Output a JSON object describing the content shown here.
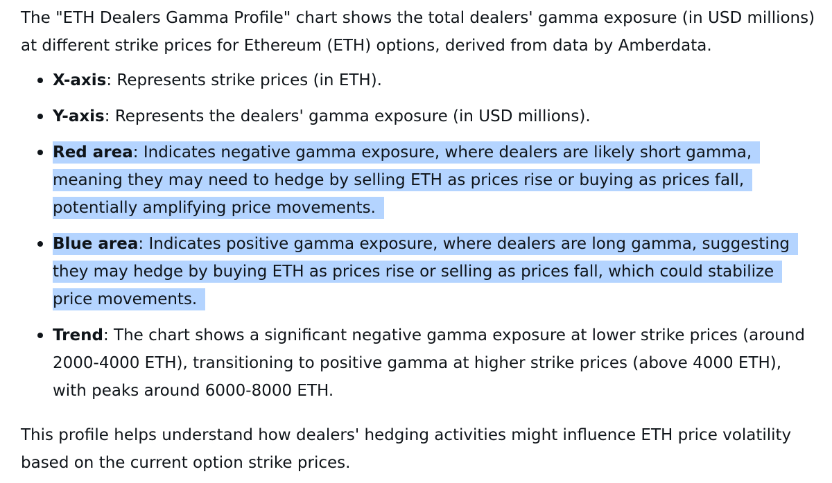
{
  "intro": "The \"ETH Dealers Gamma Profile\" chart shows the total dealers' gamma exposure (in USD millions) at different strike prices for Ethereum (ETH) options, derived from data by Amberdata.",
  "bullets": [
    {
      "term": "X-axis",
      "sep": ": ",
      "text": "Represents strike prices (in ETH).",
      "highlighted": false
    },
    {
      "term": "Y-axis",
      "sep": ": ",
      "text": "Represents the dealers' gamma exposure (in USD millions).",
      "highlighted": false
    },
    {
      "term": "Red area",
      "sep": ": ",
      "text": "Indicates negative gamma exposure, where dealers are likely short gamma, meaning they may need to hedge by selling ETH as prices rise or buying as prices fall, potentially amplifying price movements.",
      "highlighted": true
    },
    {
      "term": "Blue area",
      "sep": ": ",
      "text": "Indicates positive gamma exposure, where dealers are long gamma, suggesting they may hedge by buying ETH as prices rise or selling as prices fall, which could stabilize price movements.",
      "highlighted": true
    },
    {
      "term": "Trend",
      "sep": ": ",
      "text": "The chart shows a significant negative gamma exposure at lower strike prices (around 2000-4000 ETH), transitioning to positive gamma at higher strike prices (above 4000 ETH), with peaks around 6000-8000 ETH.",
      "highlighted": false
    }
  ],
  "outro": "This profile helps understand how dealers' hedging activities might influence ETH price volatility based on the current option strike prices.",
  "colors": {
    "text": "#0f1419",
    "selection_highlight": "#b4d4ff",
    "background": "#ffffff"
  }
}
